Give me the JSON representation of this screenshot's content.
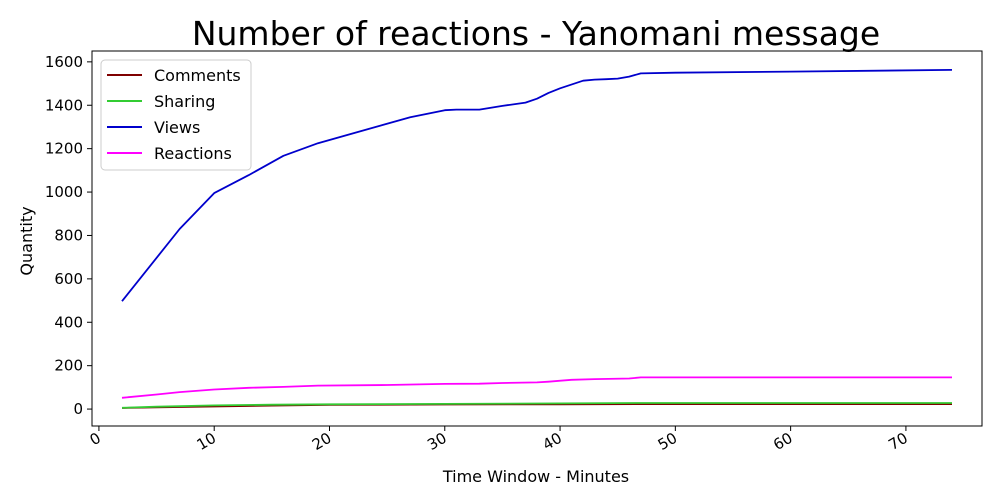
{
  "chart_data": {
    "type": "line",
    "title": "Number of reactions - Yanomani message",
    "xlabel": "Time Window - Minutes",
    "ylabel": "Quantity",
    "xlim": [
      -0.6,
      76.6
    ],
    "ylim": [
      -78,
      1650
    ],
    "x_ticks": [
      0,
      10,
      20,
      30,
      40,
      50,
      60,
      70
    ],
    "y_ticks": [
      0,
      200,
      400,
      600,
      800,
      1000,
      1200,
      1400,
      1600
    ],
    "legend_position": "upper-left",
    "grid": false,
    "series": [
      {
        "name": "Comments",
        "color": "#7f0000",
        "x": [
          2,
          5,
          10,
          15,
          20,
          30,
          40,
          47,
          60,
          74
        ],
        "y": [
          5,
          8,
          12,
          16,
          19,
          21,
          22,
          23,
          23,
          23
        ]
      },
      {
        "name": "Sharing",
        "color": "#33cc33",
        "x": [
          2,
          5,
          10,
          15,
          20,
          30,
          40,
          47,
          60,
          74
        ],
        "y": [
          6,
          11,
          17,
          20,
          22,
          24,
          26,
          28,
          28,
          28
        ]
      },
      {
        "name": "Views",
        "color": "#0000cc",
        "x": [
          2,
          7,
          10,
          13,
          16,
          19,
          22,
          27,
          30,
          31,
          33,
          35,
          37,
          38,
          39,
          40,
          42,
          43,
          44,
          45,
          46,
          47,
          50,
          60,
          74
        ],
        "y": [
          497,
          830,
          995,
          1078,
          1167,
          1225,
          1270,
          1345,
          1377,
          1380,
          1380,
          1397,
          1412,
          1430,
          1457,
          1478,
          1513,
          1518,
          1520,
          1523,
          1532,
          1547,
          1550,
          1555,
          1563
        ]
      },
      {
        "name": "Reactions",
        "color": "#ff00ff",
        "x": [
          2,
          5,
          7,
          10,
          13,
          16,
          19,
          25,
          30,
          33,
          35,
          38,
          39,
          41,
          43,
          46,
          47,
          60,
          74
        ],
        "y": [
          52,
          67,
          78,
          90,
          98,
          102,
          108,
          111,
          116,
          117,
          120,
          123,
          126,
          135,
          138,
          141,
          146,
          146,
          146
        ]
      }
    ]
  }
}
